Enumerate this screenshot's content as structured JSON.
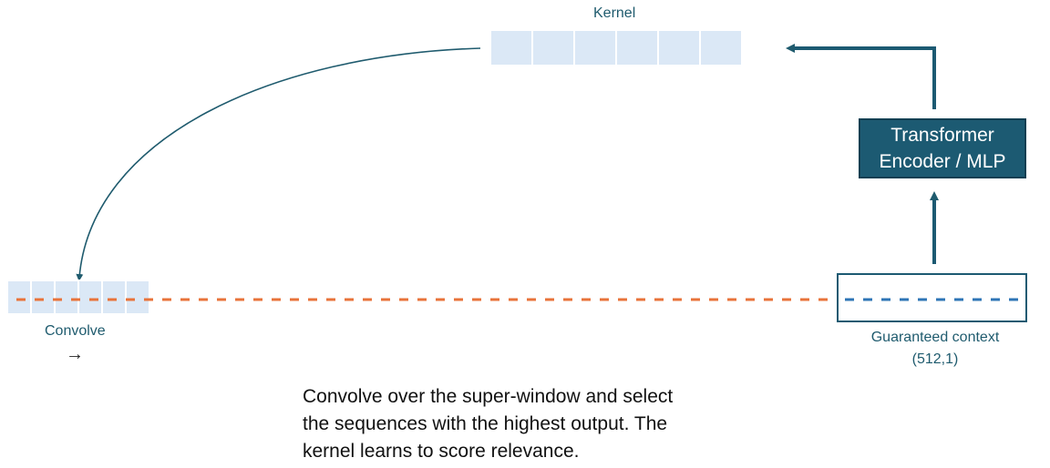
{
  "kernel": {
    "label": "Kernel",
    "cells": 6
  },
  "encoder": {
    "line1": "Transformer",
    "line2": "Encoder / MLP"
  },
  "convolve": {
    "label": "Convolve",
    "arrow": "→",
    "cells": 6
  },
  "context": {
    "label": "Guaranteed context",
    "shape": "(512,1)"
  },
  "caption": {
    "line1": "Convolve over the super-window and select",
    "line2": "the sequences with the highest output.  The",
    "line3": "kernel learns to score relevance."
  },
  "colors": {
    "accent": "#1c5a72",
    "line_teal": "#1f5b6e",
    "cell_fill": "#dbe8f6",
    "dash_orange": "#e8733a",
    "dash_blue": "#2e75b6"
  }
}
